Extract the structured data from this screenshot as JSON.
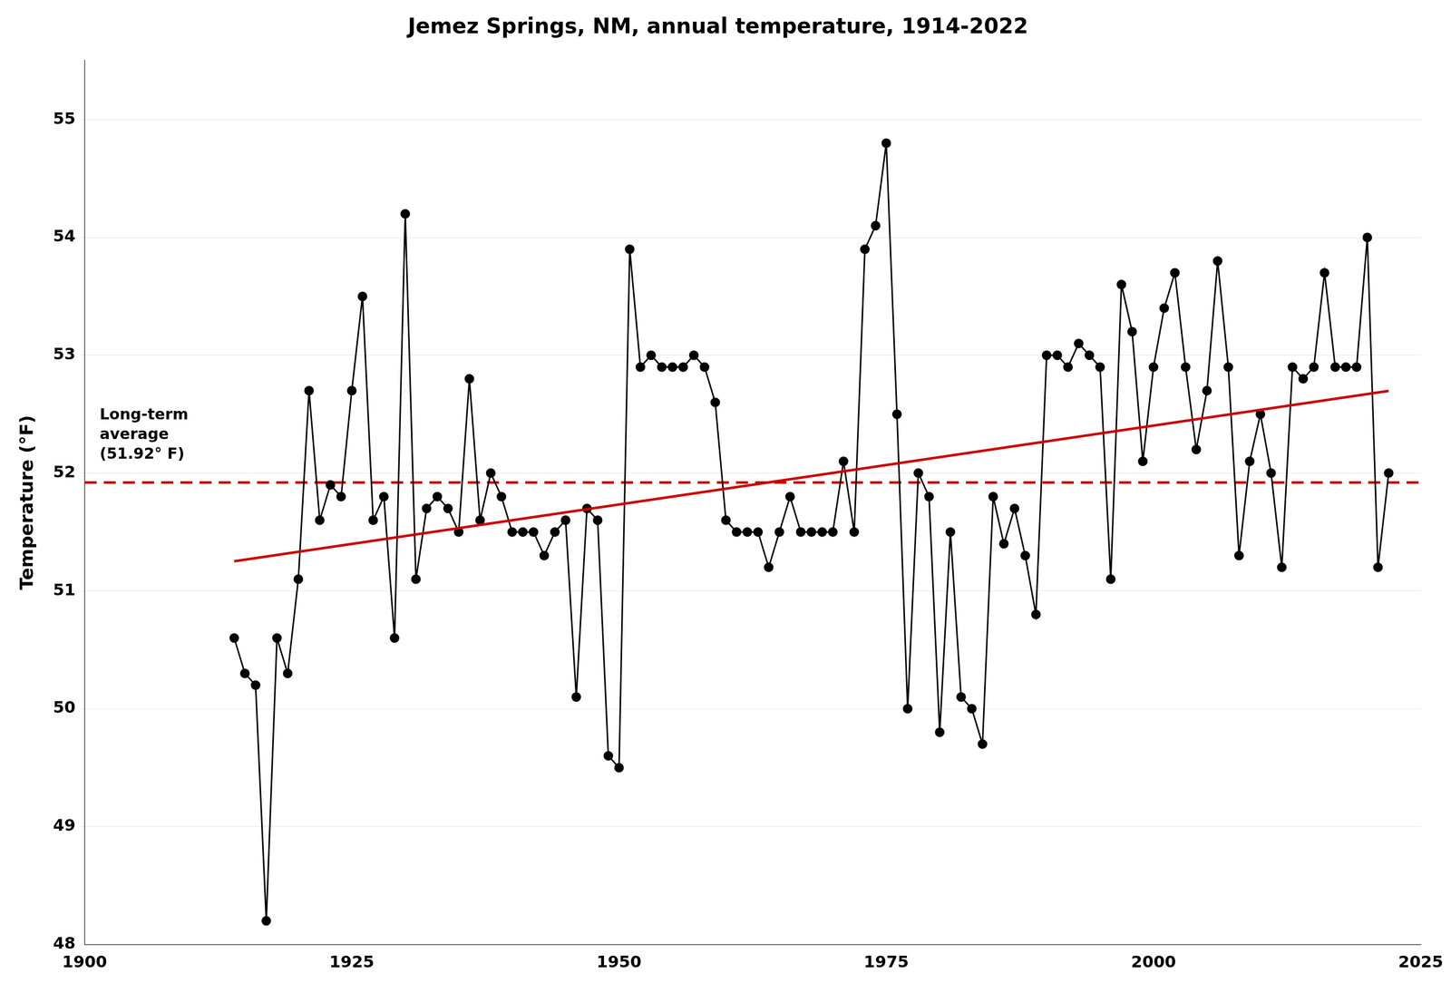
{
  "chart_data": {
    "type": "line",
    "title": "Jemez Springs, NM, annual temperature, 1914-2022",
    "y_label": "Temperature (°F)",
    "xlim": [
      1900,
      2025
    ],
    "xticks": [
      1900,
      1925,
      1950,
      1975,
      2000,
      2025
    ],
    "ylim": [
      48,
      55.5
    ],
    "yticks": [
      48,
      49,
      50,
      51,
      52,
      53,
      54,
      55
    ],
    "grid": "y",
    "x": [
      1914,
      1915,
      1916,
      1917,
      1918,
      1919,
      1920,
      1921,
      1922,
      1923,
      1924,
      1925,
      1926,
      1927,
      1928,
      1929,
      1930,
      1931,
      1932,
      1933,
      1934,
      1935,
      1936,
      1937,
      1938,
      1939,
      1940,
      1941,
      1942,
      1943,
      1944,
      1945,
      1946,
      1947,
      1948,
      1949,
      1950,
      1951,
      1952,
      1953,
      1954,
      1955,
      1956,
      1957,
      1958,
      1959,
      1960,
      1961,
      1962,
      1963,
      1964,
      1965,
      1966,
      1967,
      1968,
      1969,
      1970,
      1971,
      1972,
      1973,
      1974,
      1975,
      1976,
      1977,
      1978,
      1979,
      1980,
      1981,
      1982,
      1983,
      1984,
      1985,
      1986,
      1987,
      1988,
      1989,
      1990,
      1991,
      1992,
      1993,
      1994,
      1995,
      1996,
      1997,
      1998,
      1999,
      2000,
      2001,
      2002,
      2003,
      2004,
      2005,
      2006,
      2007,
      2008,
      2009,
      2010,
      2011,
      2012,
      2013,
      2014,
      2015,
      2016,
      2017,
      2018,
      2019,
      2020,
      2021,
      2022
    ],
    "series": [
      {
        "color": "#000000",
        "marker": "circle",
        "line_style": "solid",
        "values": [
          50.6,
          50.3,
          50.2,
          48.2,
          50.6,
          50.3,
          51.1,
          52.7,
          51.6,
          51.9,
          51.8,
          52.7,
          53.5,
          51.6,
          51.8,
          50.6,
          54.2,
          51.1,
          51.7,
          51.8,
          51.7,
          51.5,
          52.8,
          51.6,
          52.0,
          51.8,
          51.5,
          51.5,
          51.5,
          51.3,
          51.5,
          51.6,
          50.1,
          51.7,
          51.6,
          49.6,
          49.5,
          53.9,
          52.9,
          53.0,
          52.9,
          52.9,
          52.9,
          53.0,
          52.9,
          52.6,
          51.6,
          51.5,
          51.5,
          51.5,
          51.2,
          51.5,
          51.8,
          51.5,
          51.5,
          51.5,
          51.5,
          52.1,
          51.5,
          53.9,
          54.1,
          54.8,
          52.5,
          50.0,
          52.0,
          51.8,
          49.8,
          51.5,
          50.1,
          50.0,
          49.7,
          51.8,
          51.4,
          51.7,
          51.3,
          50.8,
          53.0,
          53.0,
          52.9,
          53.1,
          53.0,
          52.9,
          51.1,
          53.6,
          53.2,
          52.1,
          52.9,
          53.4,
          53.7,
          52.9,
          52.2,
          52.7,
          53.8,
          52.9,
          51.3,
          52.1,
          52.5,
          52.0,
          51.2,
          52.9,
          52.8,
          52.9,
          53.7,
          52.9,
          52.9,
          52.9,
          54.0,
          51.2,
          52.0
        ]
      },
      {
        "color": "#cc0000",
        "marker": "none",
        "line_style": "solid",
        "x": [
          1914,
          2022
        ],
        "values": [
          51.2513,
          52.6973
        ]
      }
    ],
    "reference_line": {
      "value": 51.92,
      "color": "#cc0000",
      "line_style": "dashed",
      "label": "Long-term\naverage\n(51.92° F)"
    }
  }
}
